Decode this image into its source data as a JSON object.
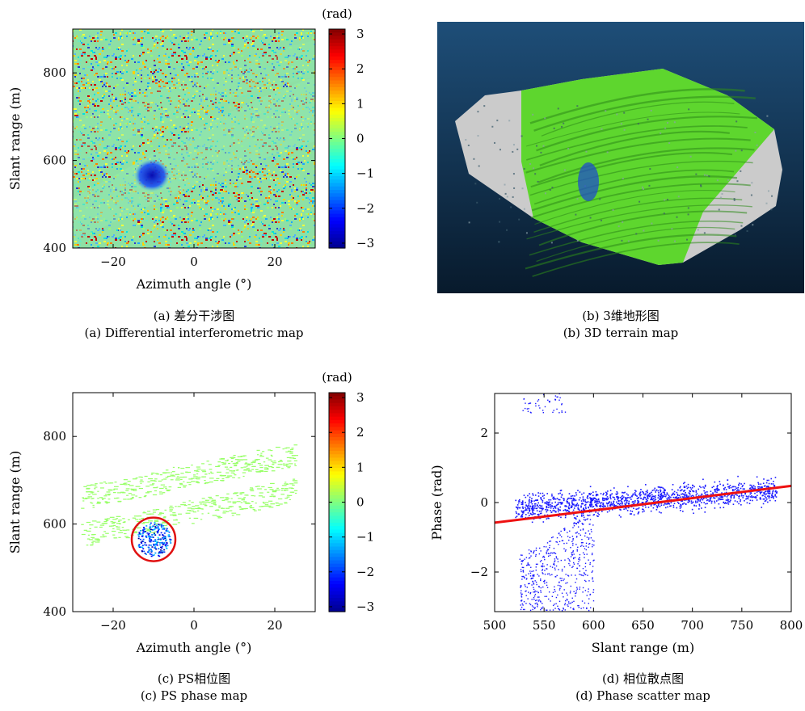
{
  "colors": {
    "jet": [
      "#00008f",
      "#0000ff",
      "#0080ff",
      "#00ffff",
      "#80ff80",
      "#ffff00",
      "#ff8000",
      "#ff0000",
      "#800000"
    ],
    "scatter": "#1a1aff",
    "fit_line": "#ee1111",
    "terrain_green": "#5ed62e",
    "terrain_bg_top": "#1e4e78",
    "terrain_bg_bottom": "#081a2c",
    "terrain_grey": "#cbcbcb",
    "circle": "#e01010"
  },
  "panels": {
    "a": {
      "caption_cn": "(a) 差分干涉图",
      "caption_en": "(a) Differential interferometric map"
    },
    "b": {
      "caption_cn": "(b) 3维地形图",
      "caption_en": "(b) 3D terrain map"
    },
    "c": {
      "caption_cn": "(c) PS相位图",
      "caption_en": "(c) PS phase map"
    },
    "d": {
      "caption_cn": "(d) 相位散点图",
      "caption_en": "(d) Phase scatter map"
    }
  },
  "chart_data": [
    {
      "panel": "a",
      "type": "heatmap",
      "title": "",
      "xlabel": "Azimuth angle (°)",
      "ylabel": "Slant range (m)",
      "xlim": [
        -30,
        30
      ],
      "ylim": [
        400,
        900
      ],
      "xticks": [
        -20,
        0,
        20
      ],
      "yticks": [
        400,
        600,
        800
      ],
      "colorbar": {
        "label": "(rad)",
        "range": [
          -3.14,
          3.14
        ],
        "ticks": [
          3,
          2,
          1,
          0,
          -1,
          -2,
          -3
        ]
      },
      "features": [
        {
          "name": "background noise phase",
          "value_rad": 0.0
        },
        {
          "name": "deformation area",
          "azimuth_deg": -10,
          "slant_range_m": 570,
          "value_rad": -2.4
        }
      ]
    },
    {
      "panel": "b",
      "type": "other",
      "title": ""
    },
    {
      "panel": "c",
      "type": "scatter",
      "title": "",
      "xlabel": "Azimuth angle (°)",
      "ylabel": "Slant range (m)",
      "xlim": [
        -30,
        30
      ],
      "ylim": [
        400,
        900
      ],
      "xticks": [
        -20,
        0,
        20
      ],
      "yticks": [
        400,
        600,
        800
      ],
      "colorbar": {
        "label": "(rad)",
        "range": [
          -3.14,
          3.14
        ],
        "ticks": [
          3,
          2,
          1,
          0,
          -1,
          -2,
          -3
        ]
      },
      "highlight": {
        "azimuth_deg": -10,
        "slant_range_m": 565,
        "value_rad": -2.0
      }
    },
    {
      "panel": "d",
      "type": "scatter",
      "title": "",
      "xlabel": "Slant range (m)",
      "ylabel": "Phase (rad)",
      "xlim": [
        500,
        800
      ],
      "ylim": [
        -3.14,
        3.14
      ],
      "xticks": [
        500,
        550,
        600,
        650,
        700,
        750,
        800
      ],
      "yticks": [
        -2,
        0,
        2
      ],
      "point_range_x": [
        520,
        785
      ],
      "fit_line": {
        "x": [
          500,
          800
        ],
        "y": [
          -0.58,
          0.48
        ]
      },
      "anomaly": {
        "x_range": [
          525,
          600
        ],
        "y_range": [
          -3.1,
          -0.2
        ]
      }
    }
  ]
}
